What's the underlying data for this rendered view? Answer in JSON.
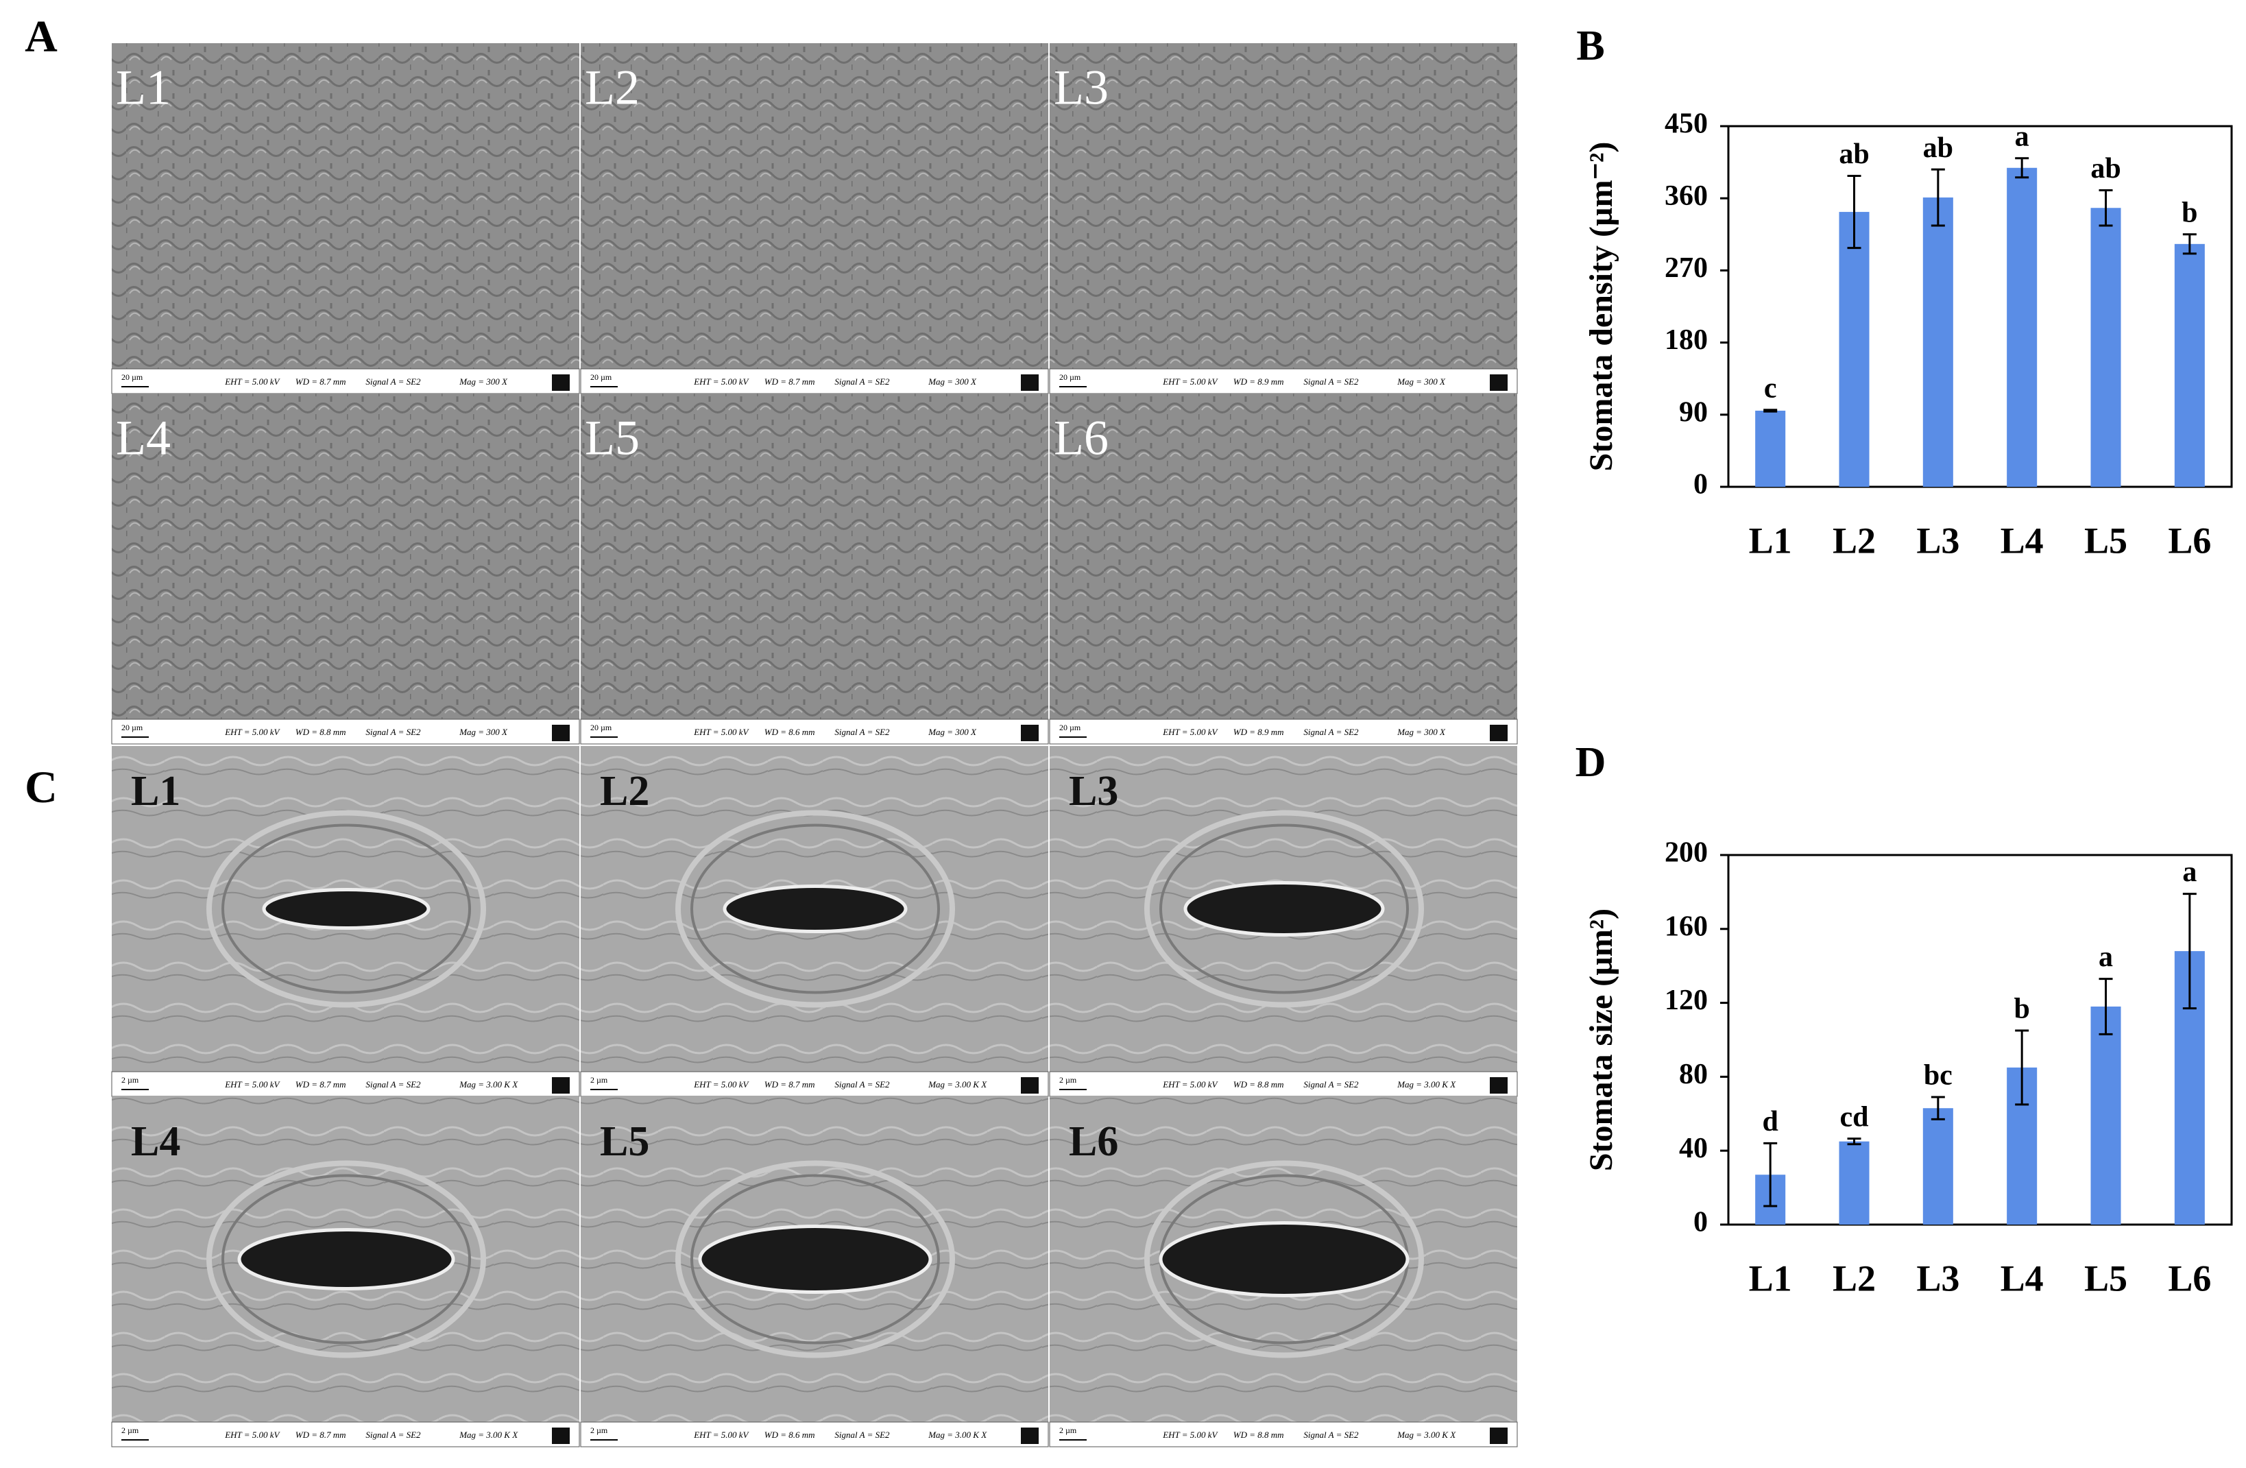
{
  "figure": {
    "panel_a": {
      "letter": "A",
      "images": [
        {
          "label": "L1",
          "scale": "20 µm",
          "eht": "EHT = 5.00 kV",
          "wd": "WD = 8.7 mm",
          "signal": "Signal A = SE2",
          "mag": "Mag = 300 X"
        },
        {
          "label": "L2",
          "scale": "20 µm",
          "eht": "EHT = 5.00 kV",
          "wd": "WD = 8.7 mm",
          "signal": "Signal A = SE2",
          "mag": "Mag = 300 X"
        },
        {
          "label": "L3",
          "scale": "20 µm",
          "eht": "EHT = 5.00 kV",
          "wd": "WD = 8.9 mm",
          "signal": "Signal A = SE2",
          "mag": "Mag = 300 X"
        },
        {
          "label": "L4",
          "scale": "20 µm",
          "eht": "EHT = 5.00 kV",
          "wd": "WD = 8.8 mm",
          "signal": "Signal A = SE2",
          "mag": "Mag = 300 X"
        },
        {
          "label": "L5",
          "scale": "20 µm",
          "eht": "EHT = 5.00 kV",
          "wd": "WD = 8.6 mm",
          "signal": "Signal A = SE2",
          "mag": "Mag = 300 X"
        },
        {
          "label": "L6",
          "scale": "20 µm",
          "eht": "EHT = 5.00 kV",
          "wd": "WD = 8.9 mm",
          "signal": "Signal A = SE2",
          "mag": "Mag = 300 X"
        }
      ]
    },
    "panel_c": {
      "letter": "C",
      "images": [
        {
          "label": "L1",
          "scale": "2 µm",
          "eht": "EHT = 5.00 kV",
          "wd": "WD = 8.7 mm",
          "signal": "Signal A = SE2",
          "mag": "Mag = 3.00 K X"
        },
        {
          "label": "L2",
          "scale": "2 µm",
          "eht": "EHT = 5.00 kV",
          "wd": "WD = 8.7 mm",
          "signal": "Signal A = SE2",
          "mag": "Mag = 3.00 K X"
        },
        {
          "label": "L3",
          "scale": "2 µm",
          "eht": "EHT = 5.00 kV",
          "wd": "WD = 8.8 mm",
          "signal": "Signal A = SE2",
          "mag": "Mag = 3.00 K X"
        },
        {
          "label": "L4",
          "scale": "2 µm",
          "eht": "EHT = 5.00 kV",
          "wd": "WD = 8.7 mm",
          "signal": "Signal A = SE2",
          "mag": "Mag = 3.00 K X"
        },
        {
          "label": "L5",
          "scale": "2 µm",
          "eht": "EHT = 5.00 kV",
          "wd": "WD = 8.6 mm",
          "signal": "Signal A = SE2",
          "mag": "Mag = 3.00 K X"
        },
        {
          "label": "L6",
          "scale": "2 µm",
          "eht": "EHT = 5.00 kV",
          "wd": "WD = 8.8 mm",
          "signal": "Signal A = SE2",
          "mag": "Mag = 3.00 K X"
        }
      ]
    }
  },
  "chart_data": [
    {
      "type": "bar",
      "letter": "B",
      "y_label": "Stomata density (µm⁻²)",
      "categories": [
        "L1",
        "L2",
        "L3",
        "L4",
        "L5",
        "L6"
      ],
      "values": [
        95,
        343,
        361,
        398,
        348,
        303
      ],
      "errors": [
        1,
        45,
        35,
        12,
        22,
        12
      ],
      "annotations": [
        "c",
        "ab",
        "ab",
        "a",
        "ab",
        "b"
      ],
      "color": "#5a8de6",
      "ylim": [
        0,
        450
      ],
      "yticks": [
        0,
        90,
        180,
        270,
        360,
        450
      ]
    },
    {
      "type": "bar",
      "letter": "D",
      "y_label": "Stomata  size (µm²)",
      "categories": [
        "L1",
        "L2",
        "L3",
        "L4",
        "L5",
        "L6"
      ],
      "values": [
        27,
        45,
        63,
        85,
        118,
        148
      ],
      "errors": [
        17,
        1.5,
        6,
        20,
        15,
        31
      ],
      "annotations": [
        "d",
        "cd",
        "bc",
        "b",
        "a",
        "a"
      ],
      "color": "#5a8de6",
      "ylim": [
        0,
        200
      ],
      "yticks": [
        0,
        40,
        80,
        120,
        160,
        200
      ]
    }
  ]
}
